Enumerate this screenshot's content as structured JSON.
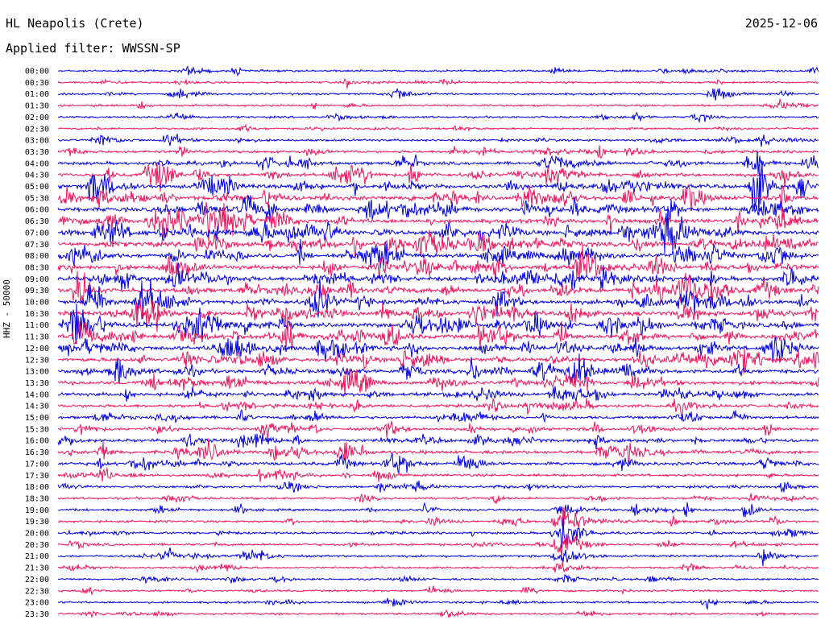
{
  "header": {
    "station": "HL Neapolis (Crete)",
    "date": "2025-12-06",
    "filter": "Applied filter: WWSSN-SP"
  },
  "channel_label": "HHZ - 50000",
  "colors": {
    "even_row": "#0000e6",
    "odd_row": "#f0145a",
    "text": "#000000"
  },
  "chart_data": {
    "type": "line",
    "title": "HL Neapolis (Crete)",
    "subtitle": "Applied filter: WWSSN-SP",
    "date": "2025-12-06",
    "ylabel": "HHZ - 50000",
    "row_labels": [
      "00:00",
      "00:30",
      "01:00",
      "01:30",
      "02:00",
      "02:30",
      "03:00",
      "03:30",
      "04:00",
      "04:30",
      "05:00",
      "05:30",
      "06:00",
      "06:30",
      "07:00",
      "07:30",
      "08:00",
      "08:30",
      "09:00",
      "09:30",
      "10:00",
      "10:30",
      "11:00",
      "11:30",
      "12:00",
      "12:30",
      "13:00",
      "13:30",
      "14:00",
      "14:30",
      "15:00",
      "15:30",
      "16:00",
      "16:30",
      "17:00",
      "17:30",
      "18:00",
      "18:30",
      "19:00",
      "19:30",
      "20:00",
      "20:30",
      "21:00",
      "21:30",
      "22:00",
      "22:30",
      "23:00",
      "23:30"
    ],
    "row_minutes": 30,
    "row_activity": [
      0.2,
      0.2,
      0.2,
      0.2,
      0.2,
      0.2,
      0.3,
      0.4,
      0.6,
      0.7,
      0.9,
      1.0,
      1.0,
      1.0,
      1.0,
      1.0,
      1.0,
      1.0,
      1.0,
      1.0,
      1.0,
      1.0,
      1.0,
      1.0,
      1.0,
      0.9,
      0.9,
      0.8,
      0.7,
      0.6,
      0.5,
      0.5,
      0.6,
      0.7,
      0.6,
      0.4,
      0.3,
      0.3,
      0.3,
      0.3,
      0.3,
      0.3,
      0.25,
      0.2,
      0.2,
      0.2,
      0.2,
      0.2
    ],
    "grid": false,
    "legend": "none"
  }
}
